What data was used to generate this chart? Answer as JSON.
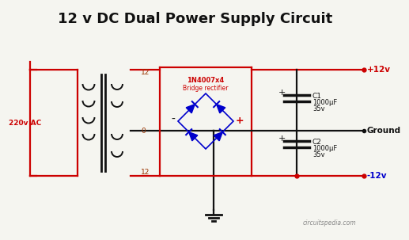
{
  "title": "12 v DC Dual Power Supply Circuit",
  "title_fontsize": 13,
  "bg_color": "#f5f5f0",
  "red": "#cc0000",
  "blue": "#0000cc",
  "black": "#111111",
  "dark_red": "#993300",
  "watermark": "circuitspedia.com",
  "label_220vac": "220v AC",
  "label_12top": "12",
  "label_0": "0",
  "label_12bot": "12",
  "label_bridge_line1": "1N4007x4",
  "label_bridge_line2": "Bridge rectifier",
  "label_plus12": "+12v",
  "label_minus12": "-12v",
  "label_ground": "Ground",
  "label_c1_name": "C1",
  "label_c1_val": "1000μF",
  "label_c1_v": "35v",
  "label_c2_name": "C2",
  "label_c2_val": "1000μF",
  "label_c2_v": "35v"
}
